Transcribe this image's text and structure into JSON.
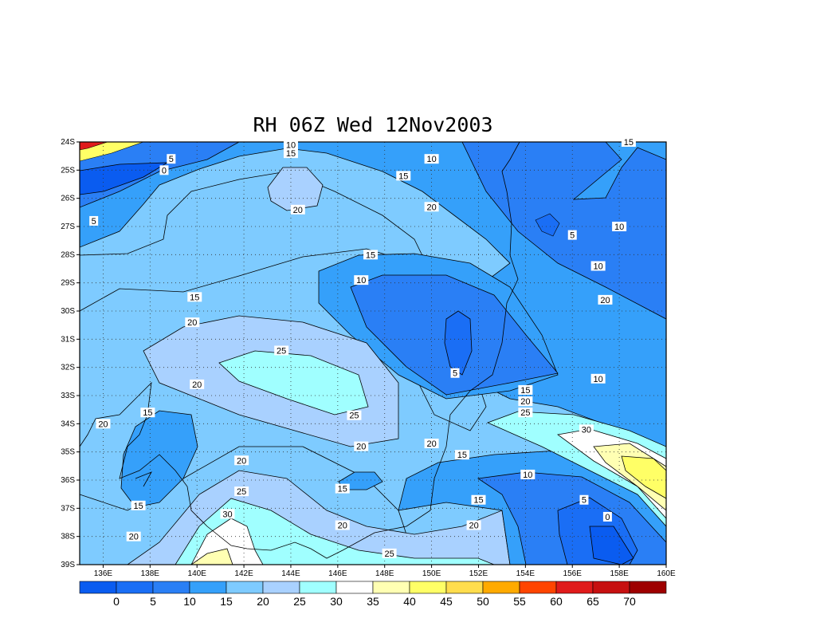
{
  "chart_data": {
    "type": "contour",
    "title": "RH 06Z Wed 12Nov2003",
    "x_ticks": [
      "136E",
      "138E",
      "140E",
      "142E",
      "144E",
      "146E",
      "148E",
      "150E",
      "152E",
      "154E",
      "156E",
      "158E",
      "160E"
    ],
    "y_ticks": [
      "24S",
      "25S",
      "26S",
      "27S",
      "28S",
      "29S",
      "30S",
      "31S",
      "32S",
      "33S",
      "34S",
      "35S",
      "36S",
      "37S",
      "38S",
      "39S"
    ],
    "xlim": [
      135,
      160
    ],
    "ylim": [
      -39,
      -24
    ],
    "grid": true,
    "colorbar": {
      "labels": [
        "0",
        "5",
        "10",
        "15",
        "20",
        "25",
        "30",
        "35",
        "40",
        "45",
        "50",
        "55",
        "60",
        "65",
        "70"
      ],
      "colors": [
        "#0a5cf0",
        "#1a6ef5",
        "#2a7ff5",
        "#35a0fa",
        "#7ecbff",
        "#a9d1ff",
        "#a0ffff",
        "#ffffff",
        "#ffffb3",
        "#ffff66",
        "#ffdd4d",
        "#ffaa00",
        "#ff4500",
        "#e01b1b",
        "#c71010",
        "#9e0000"
      ]
    },
    "contour_labels": [
      {
        "text": "10",
        "lon": 144.0,
        "lat": -24.1
      },
      {
        "text": "15",
        "lon": 144.0,
        "lat": -24.4
      },
      {
        "text": "10",
        "lon": 150.0,
        "lat": -24.6
      },
      {
        "text": "15",
        "lon": 148.8,
        "lat": -25.2
      },
      {
        "text": "15",
        "lon": 158.4,
        "lat": -24.0
      },
      {
        "text": "5",
        "lon": 138.9,
        "lat": -24.6
      },
      {
        "text": "0",
        "lon": 138.6,
        "lat": -25.0
      },
      {
        "text": "5",
        "lon": 135.6,
        "lat": -26.8
      },
      {
        "text": "20",
        "lon": 144.3,
        "lat": -26.4
      },
      {
        "text": "20",
        "lon": 150.0,
        "lat": -26.3
      },
      {
        "text": "5",
        "lon": 156.0,
        "lat": -27.3
      },
      {
        "text": "10",
        "lon": 158.0,
        "lat": -27.0
      },
      {
        "text": "15",
        "lon": 147.4,
        "lat": -28.0
      },
      {
        "text": "10",
        "lon": 147.0,
        "lat": -28.9
      },
      {
        "text": "10",
        "lon": 157.1,
        "lat": -28.4
      },
      {
        "text": "15",
        "lon": 139.9,
        "lat": -29.5
      },
      {
        "text": "20",
        "lon": 157.4,
        "lat": -29.6
      },
      {
        "text": "20",
        "lon": 139.8,
        "lat": -30.4
      },
      {
        "text": "25",
        "lon": 143.6,
        "lat": -31.4
      },
      {
        "text": "5",
        "lon": 151.0,
        "lat": -32.2
      },
      {
        "text": "10",
        "lon": 157.1,
        "lat": -32.4
      },
      {
        "text": "20",
        "lon": 140.0,
        "lat": -32.6
      },
      {
        "text": "15",
        "lon": 154.0,
        "lat": -32.8
      },
      {
        "text": "20",
        "lon": 154.0,
        "lat": -33.2
      },
      {
        "text": "25",
        "lon": 154.0,
        "lat": -33.6
      },
      {
        "text": "15",
        "lon": 137.9,
        "lat": -33.6
      },
      {
        "text": "20",
        "lon": 136.0,
        "lat": -34.0
      },
      {
        "text": "25",
        "lon": 146.7,
        "lat": -33.7
      },
      {
        "text": "30",
        "lon": 156.6,
        "lat": -34.2
      },
      {
        "text": "20",
        "lon": 147.0,
        "lat": -34.8
      },
      {
        "text": "20",
        "lon": 150.0,
        "lat": -34.7
      },
      {
        "text": "15",
        "lon": 151.3,
        "lat": -35.1
      },
      {
        "text": "20",
        "lon": 141.9,
        "lat": -35.3
      },
      {
        "text": "10",
        "lon": 154.1,
        "lat": -35.8
      },
      {
        "text": "15",
        "lon": 146.2,
        "lat": -36.3
      },
      {
        "text": "25",
        "lon": 141.9,
        "lat": -36.4
      },
      {
        "text": "15",
        "lon": 137.5,
        "lat": -36.9
      },
      {
        "text": "15",
        "lon": 152.0,
        "lat": -36.7
      },
      {
        "text": "5",
        "lon": 156.5,
        "lat": -36.7
      },
      {
        "text": "30",
        "lon": 141.3,
        "lat": -37.2
      },
      {
        "text": "0",
        "lon": 157.5,
        "lat": -37.3
      },
      {
        "text": "20",
        "lon": 146.2,
        "lat": -37.6
      },
      {
        "text": "20",
        "lon": 151.8,
        "lat": -37.6
      },
      {
        "text": "20",
        "lon": 137.3,
        "lat": -38.0
      },
      {
        "text": "25",
        "lon": 148.2,
        "lat": -38.6
      }
    ]
  }
}
